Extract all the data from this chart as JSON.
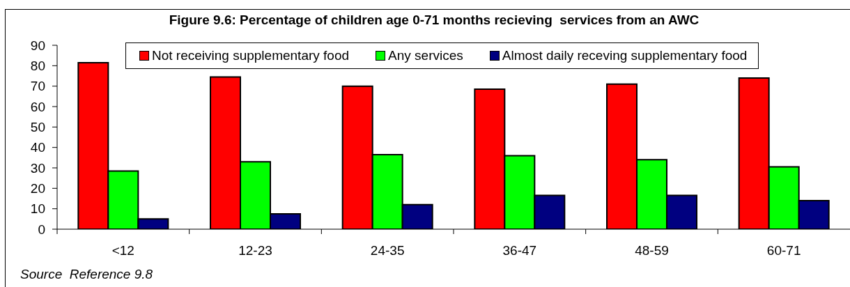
{
  "chart_data": {
    "type": "bar",
    "title": "Figure 9.6: Percentage of children age 0-71 months recieving  services from an AWC",
    "categories": [
      "<12",
      "12-23",
      "24-35",
      "36-47",
      "48-59",
      "60-71"
    ],
    "series": [
      {
        "name": "Not receiving supplementary food",
        "color": "#ff0000",
        "values": [
          81.5,
          74.5,
          70,
          68.5,
          71,
          74
        ]
      },
      {
        "name": "Any services",
        "color": "#00ff00",
        "values": [
          28.5,
          33,
          36.5,
          36,
          34,
          30.5
        ]
      },
      {
        "name": "Almost daily receving supplementary food",
        "color": "#000080",
        "values": [
          5,
          7.5,
          12,
          16.5,
          16.5,
          14
        ]
      }
    ],
    "ylim": [
      0,
      90
    ],
    "yticks": [
      0,
      10,
      20,
      30,
      40,
      50,
      60,
      70,
      80,
      90
    ],
    "legend": "top",
    "annotations": [
      "Source  Reference 9.8"
    ]
  }
}
